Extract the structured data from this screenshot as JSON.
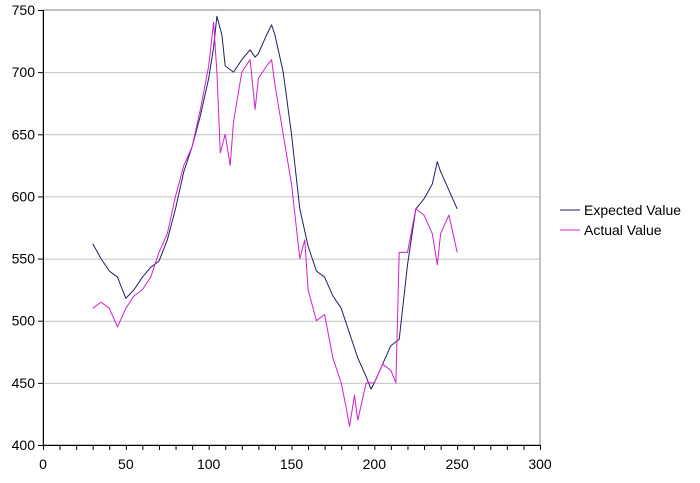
{
  "chart_data": {
    "type": "line",
    "title": "",
    "xlabel": "",
    "ylabel": "",
    "xlim": [
      0,
      300
    ],
    "ylim": [
      400,
      750
    ],
    "x_ticks": [
      0,
      50,
      100,
      150,
      200,
      250,
      300
    ],
    "y_ticks": [
      400,
      450,
      500,
      550,
      600,
      650,
      700,
      750
    ],
    "x_tick_labels": [
      "0",
      "50",
      "100",
      "150",
      "200",
      "250",
      "300"
    ],
    "y_tick_labels": [
      "400",
      "450",
      "500",
      "550",
      "600",
      "650",
      "700",
      "750"
    ],
    "grid": "horizontal",
    "legend_position": "right",
    "series": [
      {
        "name": "Expected Value",
        "color": "#1f1f66",
        "x": [
          30,
          35,
          40,
          45,
          50,
          55,
          60,
          65,
          70,
          75,
          80,
          85,
          90,
          95,
          100,
          103,
          105,
          108,
          110,
          115,
          120,
          125,
          128,
          130,
          135,
          138,
          140,
          145,
          150,
          155,
          160,
          165,
          170,
          175,
          180,
          185,
          190,
          195,
          198,
          200,
          205,
          210,
          215,
          220,
          225,
          230,
          235,
          238,
          240,
          245,
          250
        ],
        "y": [
          562,
          550,
          540,
          535,
          518,
          525,
          535,
          543,
          548,
          565,
          590,
          620,
          640,
          665,
          695,
          720,
          745,
          730,
          705,
          700,
          710,
          718,
          712,
          715,
          730,
          738,
          730,
          700,
          650,
          590,
          560,
          540,
          535,
          520,
          510,
          490,
          470,
          455,
          445,
          450,
          465,
          480,
          485,
          545,
          590,
          598,
          610,
          628,
          620,
          605,
          590
        ]
      },
      {
        "name": "Actual Value",
        "color": "#d01fd0",
        "x": [
          30,
          35,
          40,
          45,
          50,
          55,
          60,
          65,
          70,
          75,
          80,
          85,
          90,
          95,
          100,
          103,
          105,
          107,
          110,
          113,
          115,
          120,
          125,
          128,
          130,
          135,
          138,
          140,
          145,
          150,
          155,
          158,
          160,
          165,
          170,
          175,
          180,
          183,
          185,
          188,
          190,
          195,
          200,
          205,
          210,
          213,
          215,
          220,
          225,
          230,
          235,
          238,
          240,
          245,
          250
        ],
        "y": [
          510,
          515,
          510,
          495,
          510,
          520,
          525,
          535,
          555,
          570,
          600,
          625,
          640,
          670,
          705,
          740,
          700,
          635,
          650,
          625,
          660,
          700,
          710,
          670,
          695,
          705,
          710,
          690,
          650,
          610,
          550,
          565,
          525,
          500,
          505,
          470,
          450,
          430,
          415,
          440,
          420,
          450,
          450,
          465,
          460,
          450,
          555,
          555,
          590,
          585,
          570,
          545,
          570,
          585,
          555
        ]
      }
    ]
  }
}
